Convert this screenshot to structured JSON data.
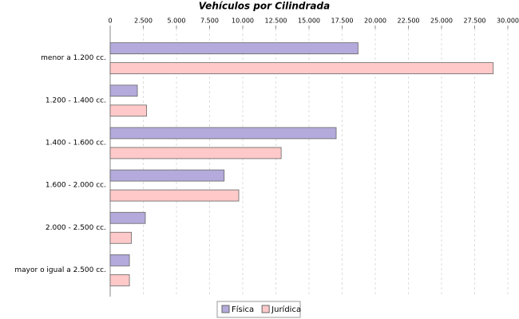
{
  "chart_data": {
    "type": "bar",
    "orientation": "horizontal",
    "title": "Vehículos por Cilindrada",
    "categories": [
      "menor a 1.200 cc.",
      "1.200 - 1.400 cc.",
      "1.400 - 1.600 cc.",
      "1.600 - 2.000 cc.",
      "2.000 - 2.500 cc.",
      "mayor o igual a 2.500 cc."
    ],
    "series": [
      {
        "name": "Física",
        "color": "#b4aadb",
        "values": [
          18700,
          2050,
          17050,
          8600,
          2650,
          1450
        ]
      },
      {
        "name": "Jurídica",
        "color": "#ffc9c9",
        "values": [
          28900,
          2750,
          12900,
          9700,
          1600,
          1450
        ]
      }
    ],
    "xlim": [
      0,
      30000
    ],
    "xticks": [
      0,
      {
        "value": 2500,
        "label": "2.500"
      },
      {
        "value": 5000,
        "label": "5.000"
      },
      {
        "value": 7500,
        "label": "7.500"
      },
      {
        "value": 10000,
        "label": "10.000"
      },
      {
        "value": 12500,
        "label": "12.500"
      },
      {
        "value": 15000,
        "label": "15.000"
      },
      {
        "value": 17500,
        "label": "17.500"
      },
      {
        "value": 20000,
        "label": "20.000"
      },
      {
        "value": 22500,
        "label": "22.500"
      },
      {
        "value": 25000,
        "label": "25.000"
      },
      {
        "value": 27500,
        "label": "27.500"
      },
      {
        "value": 30000,
        "label": "30.000"
      }
    ],
    "grid": true
  }
}
